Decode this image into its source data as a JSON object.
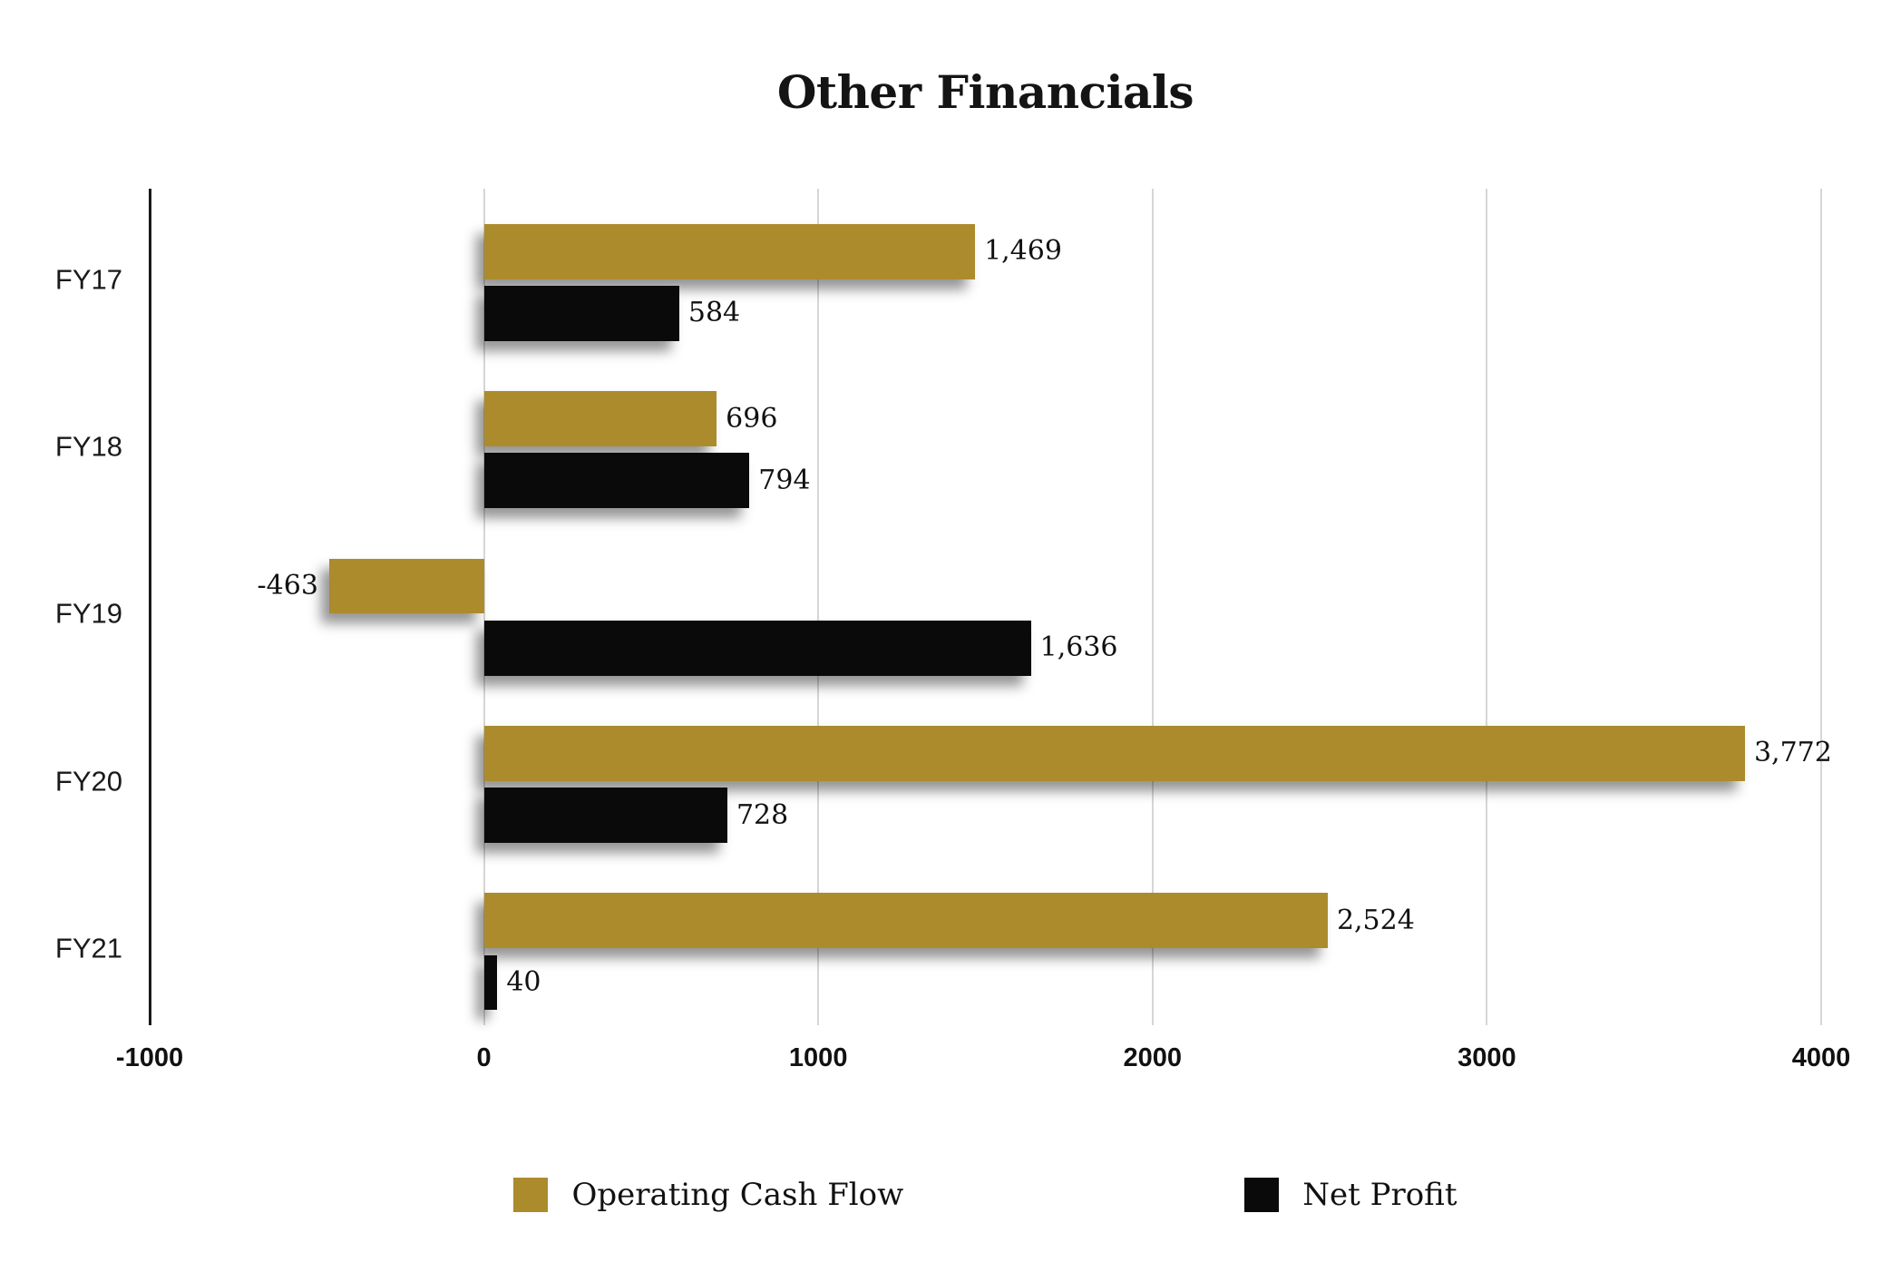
{
  "page": {
    "background": "#ffffff"
  },
  "chart_data": {
    "type": "bar",
    "orientation": "horizontal",
    "title": "Other Financials",
    "categories": [
      "FY17",
      "FY18",
      "FY19",
      "FY20",
      "FY21"
    ],
    "series": [
      {
        "name": "Operating Cash Flow",
        "color": "#AC8B2D",
        "values": [
          1469,
          696,
          -463,
          3772,
          2524
        ],
        "value_labels": [
          "1,469",
          "696",
          "-463",
          "3,772",
          "2,524"
        ]
      },
      {
        "name": "Net Profit",
        "color": "#0A0A0A",
        "values": [
          584,
          794,
          1636,
          728,
          40
        ],
        "value_labels": [
          "584",
          "794",
          "1,636",
          "728",
          "40"
        ]
      }
    ],
    "xlim": [
      -1000,
      4000
    ],
    "x_ticks": [
      {
        "value": -1000,
        "label": "-1000"
      },
      {
        "value": 0,
        "label": "0"
      },
      {
        "value": 1000,
        "label": "1000"
      },
      {
        "value": 2000,
        "label": "2000"
      },
      {
        "value": 3000,
        "label": "3000"
      },
      {
        "value": 4000,
        "label": "4000"
      }
    ],
    "grid": "vertical",
    "legend_position": "bottom",
    "axis_color": "#1a1a1a",
    "gridline_color": "#d6d6d6",
    "background_color": "#ffffff"
  },
  "legend": {
    "items": [
      {
        "label": "Operating Cash Flow",
        "color": "#AC8B2D"
      },
      {
        "label": "Net Profit",
        "color": "#0A0A0A"
      }
    ]
  }
}
